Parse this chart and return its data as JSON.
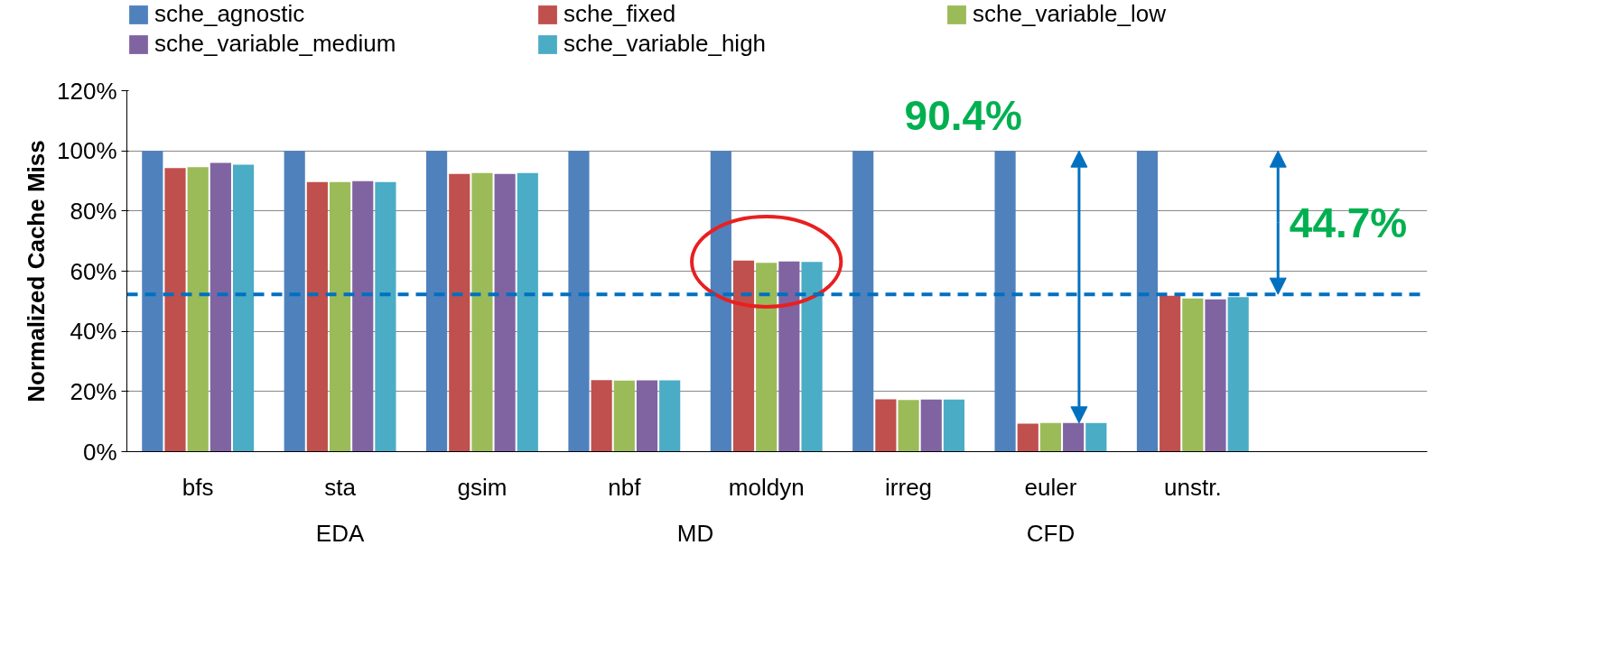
{
  "chart_data": {
    "type": "bar",
    "ylabel": "Normalized Cache Miss",
    "categories": [
      "bfs",
      "sta",
      "gsim",
      "nbf",
      "moldyn",
      "irreg",
      "euler",
      "unstr."
    ],
    "series": [
      {
        "name": "sche_agnostic",
        "color": "#4f81bd",
        "values": [
          100,
          100,
          100,
          100,
          100,
          100,
          100,
          100
        ]
      },
      {
        "name": "sche_fixed",
        "color": "#c0504d",
        "values": [
          94.3,
          89.6,
          92.3,
          23.8,
          63.5,
          17.4,
          9.3,
          51.8
        ]
      },
      {
        "name": "sche_variable_low",
        "color": "#9bbb59",
        "values": [
          94.6,
          89.6,
          92.6,
          23.6,
          62.8,
          17.2,
          9.5,
          50.9
        ]
      },
      {
        "name": "sche_variable_medium",
        "color": "#8064a2",
        "values": [
          96.0,
          89.9,
          92.3,
          23.7,
          63.2,
          17.3,
          9.5,
          50.6
        ]
      },
      {
        "name": "sche_variable_high",
        "color": "#4bacc6",
        "values": [
          95.4,
          89.6,
          92.6,
          23.7,
          63.1,
          17.3,
          9.5,
          51.4
        ]
      }
    ],
    "ylim": [
      0,
      120
    ],
    "yticks": [
      {
        "value": 0,
        "label": "0%"
      },
      {
        "value": 20,
        "label": "20%"
      },
      {
        "value": 40,
        "label": "40%"
      },
      {
        "value": 60,
        "label": "60%"
      },
      {
        "value": 80,
        "label": "80%"
      },
      {
        "value": 100,
        "label": "100%"
      },
      {
        "value": 120,
        "label": "120%"
      }
    ],
    "grid": "y",
    "legend": "top",
    "ref_lines": [
      {
        "axis": "y",
        "value": 52.3,
        "color": "#0070c0",
        "line_style": "dashed"
      }
    ],
    "annotations": [
      "90.4%",
      "44.7%",
      "EDA",
      "MD",
      "CFD"
    ]
  }
}
